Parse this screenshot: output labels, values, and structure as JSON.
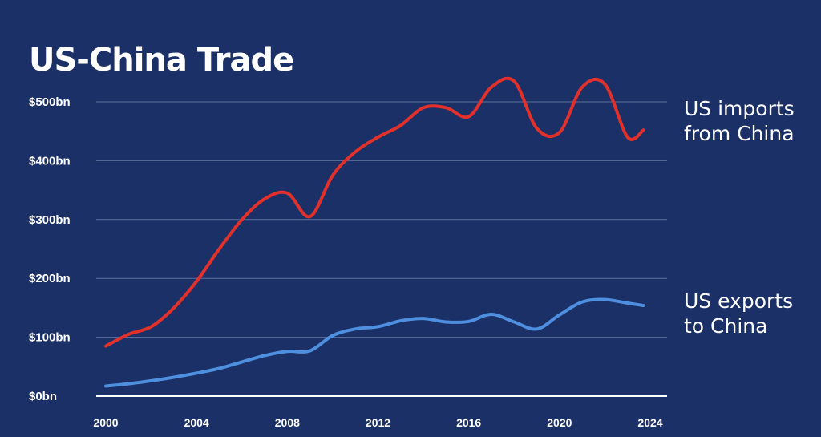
{
  "chart_data": {
    "type": "line",
    "title": "US-China Trade",
    "xlabel": "",
    "ylabel": "",
    "xlim": [
      2000,
      2024
    ],
    "ylim": [
      0,
      500
    ],
    "grid": true,
    "x_ticks": [
      "2000",
      "2004",
      "2008",
      "2012",
      "2016",
      "2020",
      "2024"
    ],
    "y_ticks": [
      "$0bn",
      "$100bn",
      "$200bn",
      "$300bn",
      "$400bn",
      "$500bn"
    ],
    "series": [
      {
        "name": "US imports from China",
        "label_lines": [
          "US imports",
          "from China"
        ],
        "color": "#e2312b",
        "x": [
          2000,
          2001,
          2002,
          2003,
          2004,
          2005,
          2006,
          2007,
          2008,
          2009,
          2010,
          2011,
          2012,
          2013,
          2014,
          2015,
          2016,
          2017,
          2018,
          2019,
          2020,
          2021,
          2022,
          2023,
          2023.7
        ],
        "values": [
          85,
          105,
          118,
          150,
          195,
          250,
          300,
          335,
          345,
          305,
          375,
          415,
          440,
          460,
          490,
          490,
          475,
          525,
          535,
          455,
          448,
          525,
          530,
          440,
          452
        ]
      },
      {
        "name": "US exports to China",
        "label_lines": [
          "US exports",
          "to China"
        ],
        "color": "#4e8fe0",
        "x": [
          2000,
          2001,
          2002,
          2003,
          2004,
          2005,
          2006,
          2007,
          2008,
          2009,
          2010,
          2011,
          2012,
          2013,
          2014,
          2015,
          2016,
          2017,
          2018,
          2019,
          2020,
          2021,
          2022,
          2023,
          2023.7
        ],
        "values": [
          17,
          21,
          26,
          32,
          39,
          47,
          58,
          69,
          76,
          77,
          103,
          114,
          118,
          128,
          132,
          126,
          127,
          139,
          126,
          114,
          138,
          160,
          164,
          158,
          154
        ]
      }
    ]
  }
}
